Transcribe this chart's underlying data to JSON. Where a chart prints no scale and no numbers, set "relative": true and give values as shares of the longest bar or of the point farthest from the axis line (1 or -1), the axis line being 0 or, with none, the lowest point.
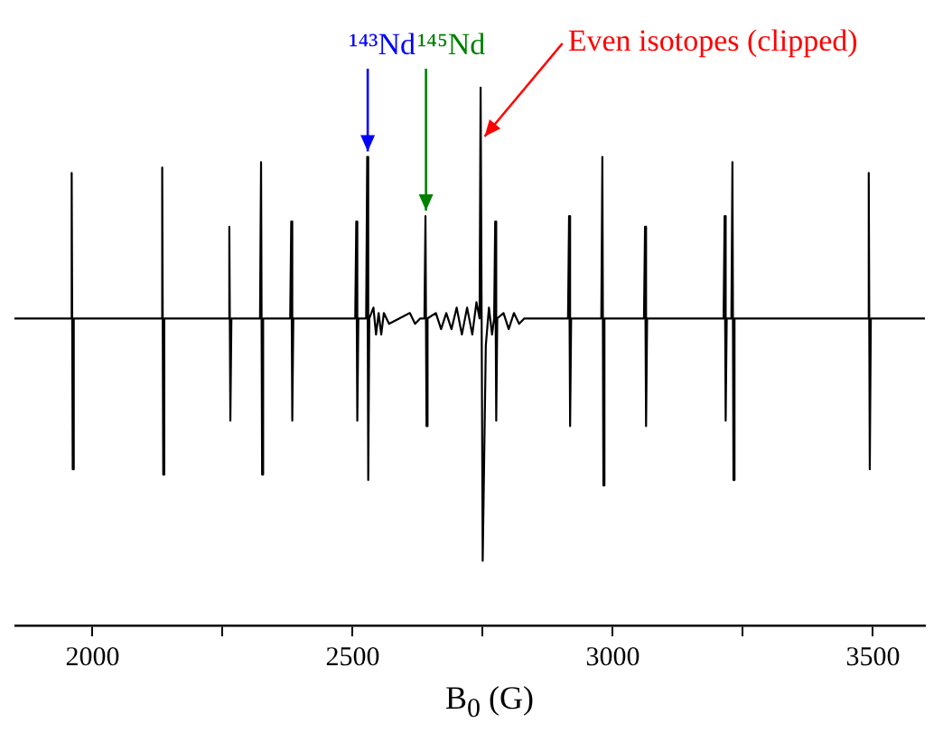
{
  "chart_data": {
    "type": "line",
    "relative": true,
    "xlabel": "B$_{0}$ (G)",
    "xlim": [
      1850,
      3600
    ],
    "xticks": [
      2000,
      {
        "value": 2250,
        "label": null
      },
      2500,
      {
        "value": 2750,
        "label": null
      },
      3000,
      {
        "value": 3250,
        "label": null
      },
      3500
    ],
    "grid": false,
    "legend": false,
    "marker": "none",
    "line_style": "solid",
    "annotations": [
      {
        "text": "¹⁴³Nd",
        "x": 2529,
        "y": 0.87
      },
      {
        "text": "¹⁴⁵Nd",
        "x": 2641,
        "y": 0.76
      },
      {
        "text": "Even isotopes (clipped)",
        "x": 2747,
        "y": 0.9
      }
    ],
    "series": [
      {
        "color": "#000000",
        "x": [
          1850,
          1958,
          1960,
          1962,
          1964,
          2132,
          2134,
          2136,
          2138,
          2261,
          2263,
          2265,
          2267,
          2322,
          2324,
          2326,
          2328,
          2380,
          2382,
          2384,
          2386,
          2505,
          2507,
          2509,
          2511,
          2526,
          2528,
          2530,
          2532,
          2540,
          2545,
          2550,
          2555,
          2560,
          2570,
          2590,
          2610,
          2620,
          2630,
          2638,
          2640,
          2642,
          2644,
          2660,
          2670,
          2680,
          2690,
          2700,
          2710,
          2720,
          2730,
          2738,
          2744,
          2746,
          2750,
          2756,
          2762,
          2768,
          2772,
          2774,
          2776,
          2778,
          2790,
          2800,
          2810,
          2820,
          2830,
          2914,
          2916,
          2918,
          2920,
          2978,
          2980,
          2982,
          2984,
          3060,
          3062,
          3064,
          3066,
          3213,
          3215,
          3217,
          3219,
          3228,
          3230,
          3232,
          3234,
          3490,
          3492,
          3494,
          3496,
          3600
        ],
        "values": [
          0.57,
          0.57,
          0.84,
          0.29,
          0.57,
          0.57,
          0.85,
          0.28,
          0.57,
          0.57,
          0.74,
          0.38,
          0.57,
          0.57,
          0.86,
          0.28,
          0.57,
          0.57,
          0.75,
          0.38,
          0.57,
          0.57,
          0.75,
          0.38,
          0.57,
          0.57,
          0.87,
          0.27,
          0.57,
          0.59,
          0.54,
          0.58,
          0.54,
          0.58,
          0.56,
          0.57,
          0.58,
          0.56,
          0.57,
          0.57,
          0.76,
          0.37,
          0.57,
          0.58,
          0.55,
          0.58,
          0.55,
          0.59,
          0.54,
          0.59,
          0.54,
          0.6,
          0.57,
          1,
          0.12,
          0.52,
          0.59,
          0.54,
          0.57,
          0.75,
          0.38,
          0.57,
          0.58,
          0.55,
          0.58,
          0.56,
          0.57,
          0.57,
          0.76,
          0.37,
          0.57,
          0.57,
          0.87,
          0.26,
          0.57,
          0.57,
          0.74,
          0.37,
          0.57,
          0.57,
          0.76,
          0.38,
          0.57,
          0.57,
          0.86,
          0.27,
          0.57,
          0.57,
          0.84,
          0.29,
          0.57,
          0.57
        ]
      }
    ]
  }
}
